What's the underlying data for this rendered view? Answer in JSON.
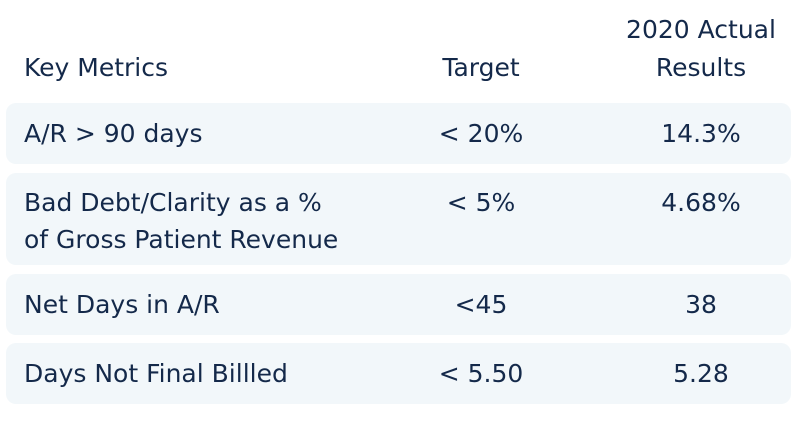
{
  "headers": {
    "metric": "Key Metrics",
    "target": "Target",
    "actual_line1": "2020 Actual",
    "actual_line2": "Results"
  },
  "rows": [
    {
      "metric": "A/R > 90 days",
      "target": "< 20%",
      "actual": "14.3%"
    },
    {
      "metric_line1": "Bad Debt/Clarity as a %",
      "metric_line2": "of Gross Patient Revenue",
      "target": "< 5%",
      "actual": "4.68%"
    },
    {
      "metric": "Net Days in A/R",
      "target": "<45",
      "actual": "38"
    },
    {
      "metric": "Days Not Final Billled",
      "target": "< 5.50",
      "actual": "5.28"
    }
  ],
  "colors": {
    "text": "#14294a",
    "row_background": "#f2f7fa",
    "page_background": "#ffffff"
  }
}
